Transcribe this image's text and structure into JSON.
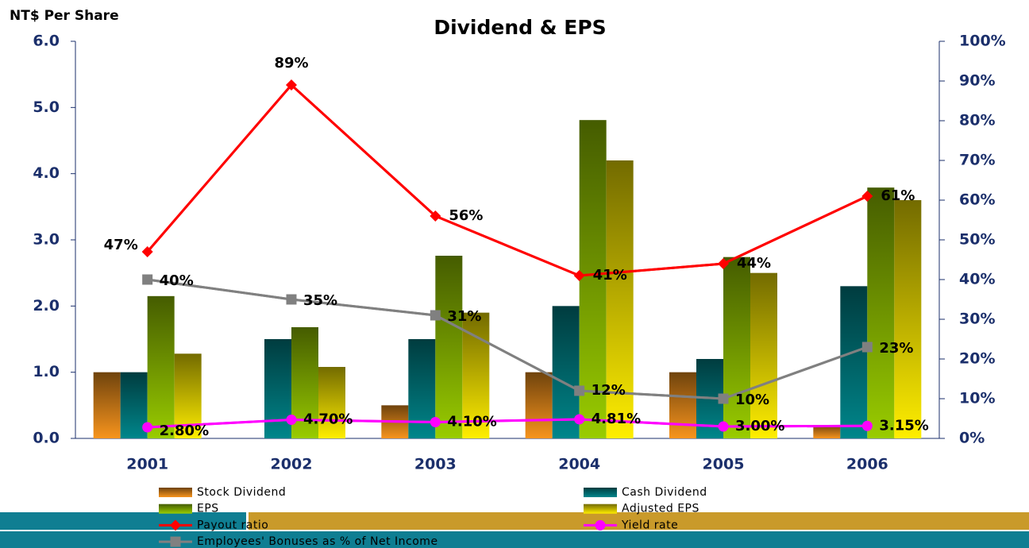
{
  "chart_data": {
    "type": "bar",
    "title": "Dividend & EPS",
    "y_label": "NT$ Per Share",
    "categories": [
      "2001",
      "2002",
      "2003",
      "2004",
      "2005",
      "2006"
    ],
    "ylim": [
      0,
      6
    ],
    "yticks": [
      {
        "value": 0,
        "label": "0.0"
      },
      {
        "value": 1,
        "label": "1.0"
      },
      {
        "value": 2,
        "label": "2.0"
      },
      {
        "value": 3,
        "label": "3.0"
      },
      {
        "value": 4,
        "label": "4.0"
      },
      {
        "value": 5,
        "label": "5.0"
      },
      {
        "value": 6,
        "label": "6.0"
      }
    ],
    "y2lim": [
      0,
      100
    ],
    "y2ticks": [
      {
        "value": 0,
        "label": "0%"
      },
      {
        "value": 10,
        "label": "10%"
      },
      {
        "value": 20,
        "label": "20%"
      },
      {
        "value": 30,
        "label": "30%"
      },
      {
        "value": 40,
        "label": "40%"
      },
      {
        "value": 50,
        "label": "50%"
      },
      {
        "value": 60,
        "label": "60%"
      },
      {
        "value": 70,
        "label": "70%"
      },
      {
        "value": 80,
        "label": "80%"
      },
      {
        "value": 90,
        "label": "90%"
      },
      {
        "value": 100,
        "label": "100%"
      }
    ],
    "series": [
      {
        "name": "Stock Dividend",
        "type": "bar",
        "color": "#f7941d",
        "values": [
          1.0,
          0,
          0.5,
          1.0,
          1.0,
          0.2
        ]
      },
      {
        "name": "Cash Dividend",
        "type": "bar",
        "color": "#00868b",
        "values": [
          1.0,
          1.5,
          1.5,
          2.0,
          1.2,
          2.3
        ]
      },
      {
        "name": "EPS",
        "type": "bar",
        "color": "#99cc00",
        "values": [
          2.15,
          1.68,
          2.76,
          4.81,
          2.74,
          3.79
        ]
      },
      {
        "name": "Adjusted EPS",
        "type": "bar",
        "color": "#ffee00",
        "values": [
          1.28,
          1.08,
          1.9,
          4.2,
          2.5,
          3.6
        ]
      },
      {
        "name": "Payout ratio",
        "type": "line",
        "axis": "y2",
        "marker": "diamond",
        "color": "#ff0000",
        "values": [
          47,
          89,
          56,
          41,
          44,
          61
        ],
        "value_labels": [
          "47%",
          "89%",
          "56%",
          "41%",
          "44%",
          "61%"
        ]
      },
      {
        "name": "Yield rate",
        "type": "line",
        "axis": "y2",
        "marker": "circle",
        "color": "#ff00ff",
        "values": [
          2.8,
          4.7,
          4.1,
          4.81,
          3.0,
          3.15
        ],
        "value_labels": [
          "2.80%",
          "4.70%",
          "4.10%",
          "4.81%",
          "3.00%",
          "3.15%"
        ]
      },
      {
        "name": "Employees' Bonuses as % of Net Income",
        "type": "line",
        "axis": "y2",
        "marker": "square",
        "color": "#808080",
        "values": [
          40,
          35,
          31,
          12,
          10,
          23
        ],
        "value_labels": [
          "40%",
          "35%",
          "31%",
          "12%",
          "10%",
          "23%"
        ]
      }
    ]
  }
}
